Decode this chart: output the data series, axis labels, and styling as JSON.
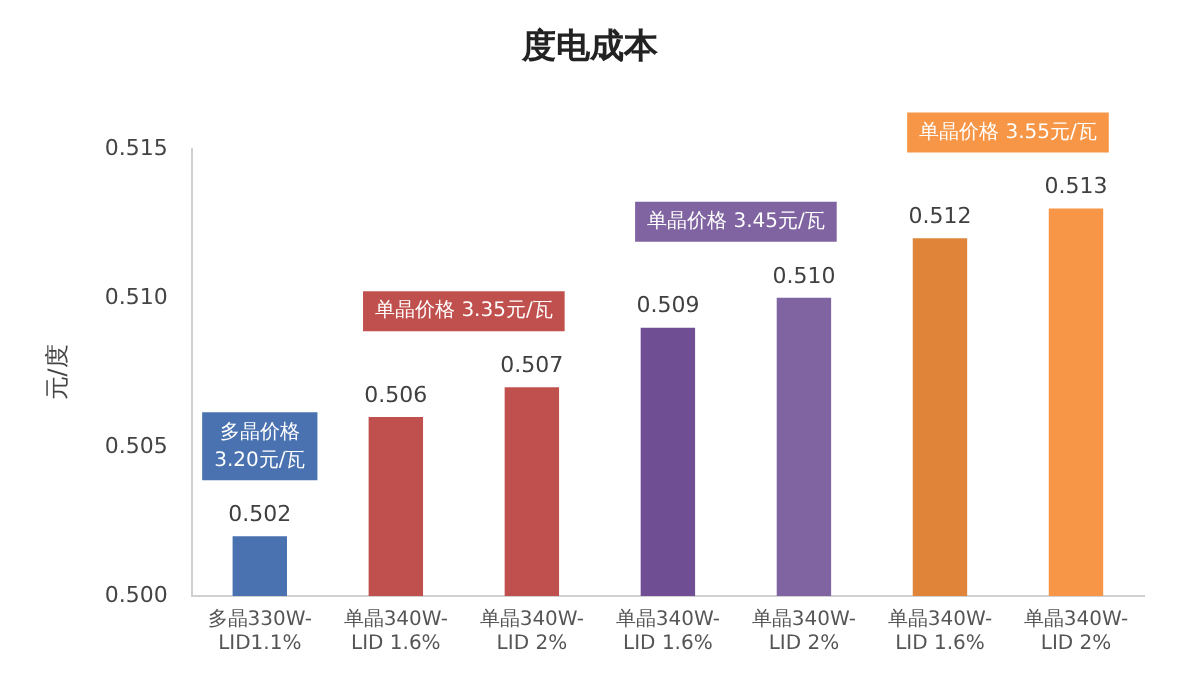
{
  "chart_data": {
    "type": "bar",
    "title": "度电成本",
    "ylabel": "元/度",
    "categories": [
      "多晶330W-LID1.1%",
      "单晶340W-LID 1.6%",
      "单晶340W-LID 2%",
      "单晶340W-LID 1.6%",
      "单晶340W-LID 2%",
      "单晶340W-LID 1.6%",
      "单晶340W-LID 2%"
    ],
    "values": [
      0.502,
      0.506,
      0.507,
      0.509,
      0.51,
      0.512,
      0.513
    ],
    "colors": [
      "#4a72b0",
      "#c0504d",
      "#c0504d",
      "#6f4e93",
      "#8064a2",
      "#e0843a",
      "#f79646"
    ],
    "value_labels": [
      "0.502",
      "0.506",
      "0.507",
      "0.509",
      "0.510",
      "0.512",
      "0.513"
    ],
    "ylim": [
      0.5,
      0.515
    ],
    "yticks": [
      {
        "value": 0.5,
        "label": "0.500"
      },
      {
        "value": 0.505,
        "label": "0.505"
      },
      {
        "value": 0.51,
        "label": "0.510"
      },
      {
        "value": 0.515,
        "label": "0.515"
      }
    ],
    "grid": false,
    "legend": false,
    "annotations": [
      "多晶价格 3.20元/瓦",
      "单晶价格 3.35元/瓦",
      "单晶价格 3.45元/瓦",
      "单晶价格 3.55元/瓦"
    ]
  }
}
